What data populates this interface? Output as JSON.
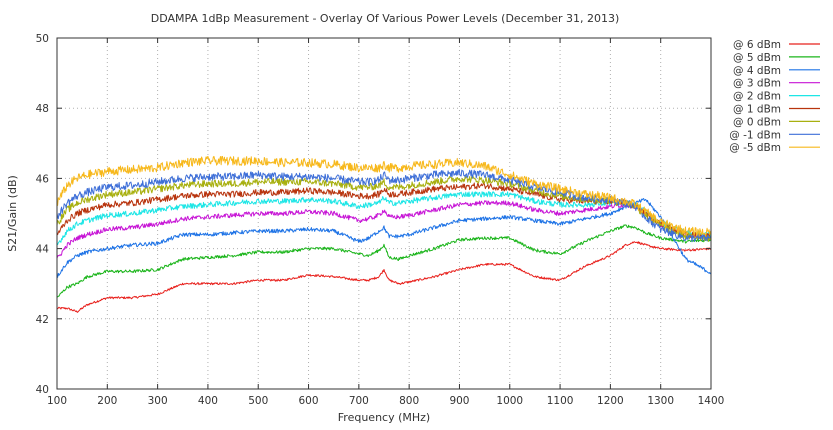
{
  "chart_data": {
    "type": "line",
    "title": "DDAMPA 1dBp Measurement - Overlay Of Various Power Levels  (December 31, 2013)",
    "xlabel": "Frequency (MHz)",
    "ylabel": "S21/Gain (dB)",
    "xlim": [
      100,
      1400
    ],
    "ylim": [
      40,
      50
    ],
    "xticks": [
      "100",
      "200",
      "300",
      "400",
      "500",
      "600",
      "700",
      "800",
      "900",
      "1000",
      "1100",
      "1200",
      "1300",
      "1400"
    ],
    "yticks": [
      "40",
      "42",
      "44",
      "46",
      "48",
      "50"
    ],
    "grid": true,
    "legend_position": "outside-right-top",
    "x": [
      100,
      120,
      140,
      160,
      200,
      250,
      300,
      350,
      400,
      450,
      500,
      550,
      600,
      650,
      700,
      720,
      740,
      750,
      760,
      780,
      800,
      850,
      900,
      950,
      1000,
      1050,
      1100,
      1150,
      1200,
      1230,
      1250,
      1270,
      1300,
      1350,
      1400
    ],
    "series": [
      {
        "name": "@ 6 dBm",
        "color": "#e8201c",
        "values": [
          42.3,
          42.3,
          42.2,
          42.4,
          42.6,
          42.6,
          42.7,
          43.0,
          43.0,
          43.0,
          43.1,
          43.1,
          43.25,
          43.2,
          43.1,
          43.1,
          43.2,
          43.4,
          43.1,
          43.0,
          43.05,
          43.2,
          43.4,
          43.55,
          43.55,
          43.2,
          43.1,
          43.5,
          43.8,
          44.1,
          44.2,
          44.1,
          44.0,
          43.95,
          44.0
        ]
      },
      {
        "name": "@ 5 dBm",
        "color": "#1bb51b",
        "values": [
          42.6,
          42.9,
          43.0,
          43.2,
          43.35,
          43.35,
          43.4,
          43.7,
          43.75,
          43.8,
          43.9,
          43.9,
          44.0,
          44.0,
          43.85,
          43.8,
          43.95,
          44.1,
          43.75,
          43.7,
          43.8,
          44.0,
          44.25,
          44.3,
          44.3,
          43.95,
          43.85,
          44.2,
          44.5,
          44.65,
          44.6,
          44.45,
          44.3,
          44.2,
          44.25
        ]
      },
      {
        "name": "@ 4 dBm",
        "color": "#1e73e6",
        "values": [
          43.2,
          43.6,
          43.8,
          43.9,
          44.0,
          44.1,
          44.15,
          44.4,
          44.4,
          44.45,
          44.5,
          44.5,
          44.55,
          44.5,
          44.2,
          44.3,
          44.5,
          44.6,
          44.35,
          44.35,
          44.4,
          44.6,
          44.8,
          44.85,
          44.9,
          44.8,
          44.7,
          44.85,
          45.0,
          45.2,
          45.3,
          45.4,
          44.9,
          43.7,
          43.3
        ]
      },
      {
        "name": "@ 3 dBm",
        "color": "#c715d6",
        "values": [
          43.7,
          44.1,
          44.3,
          44.4,
          44.55,
          44.6,
          44.7,
          44.85,
          44.9,
          44.95,
          45.0,
          45.0,
          45.05,
          45.0,
          44.8,
          44.85,
          44.95,
          45.1,
          44.9,
          44.9,
          44.95,
          45.1,
          45.25,
          45.3,
          45.3,
          45.1,
          45.0,
          45.1,
          45.2,
          45.25,
          45.2,
          45.0,
          44.7,
          44.4,
          44.35
        ]
      },
      {
        "name": "@ 2 dBm",
        "color": "#1de6e6",
        "values": [
          44.1,
          44.5,
          44.7,
          44.8,
          44.95,
          45.0,
          45.1,
          45.2,
          45.25,
          45.3,
          45.35,
          45.35,
          45.4,
          45.35,
          45.2,
          45.25,
          45.3,
          45.45,
          45.3,
          45.3,
          45.35,
          45.45,
          45.55,
          45.55,
          45.55,
          45.35,
          45.25,
          45.25,
          45.3,
          45.3,
          45.25,
          45.05,
          44.75,
          44.45,
          44.4
        ]
      },
      {
        "name": "@ 1 dBm",
        "color": "#b8340e",
        "values": [
          44.4,
          44.8,
          45.0,
          45.1,
          45.25,
          45.3,
          45.4,
          45.5,
          45.55,
          45.55,
          45.6,
          45.6,
          45.65,
          45.6,
          45.5,
          45.5,
          45.55,
          45.7,
          45.55,
          45.55,
          45.6,
          45.7,
          45.75,
          45.8,
          45.7,
          45.55,
          45.4,
          45.35,
          45.35,
          45.3,
          45.2,
          45.0,
          44.7,
          44.4,
          44.35
        ]
      },
      {
        "name": "@ 0 dBm",
        "color": "#a8b010",
        "values": [
          44.7,
          45.1,
          45.3,
          45.4,
          45.55,
          45.6,
          45.7,
          45.8,
          45.85,
          45.85,
          45.9,
          45.9,
          45.9,
          45.85,
          45.75,
          45.75,
          45.8,
          45.9,
          45.75,
          45.75,
          45.8,
          45.9,
          46.0,
          45.95,
          45.85,
          45.65,
          45.5,
          45.4,
          45.35,
          45.3,
          45.2,
          44.95,
          44.65,
          44.35,
          44.3
        ]
      },
      {
        "name": "@ -1 dBm",
        "color": "#3e6fd8",
        "values": [
          44.9,
          45.3,
          45.5,
          45.6,
          45.75,
          45.8,
          45.9,
          46.0,
          46.05,
          46.05,
          46.1,
          46.05,
          46.05,
          46.0,
          45.9,
          45.9,
          45.95,
          46.1,
          45.95,
          45.95,
          46.0,
          46.1,
          46.15,
          46.1,
          45.95,
          45.75,
          45.6,
          45.45,
          45.4,
          45.3,
          45.2,
          44.9,
          44.55,
          44.3,
          44.3
        ]
      },
      {
        "name": "@ -5 dBm",
        "color": "#f7b81b",
        "values": [
          45.3,
          45.8,
          46.0,
          46.1,
          46.2,
          46.25,
          46.3,
          46.45,
          46.5,
          46.5,
          46.5,
          46.45,
          46.45,
          46.4,
          46.3,
          46.3,
          46.3,
          46.4,
          46.3,
          46.3,
          46.35,
          46.4,
          46.45,
          46.35,
          46.1,
          45.85,
          45.7,
          45.55,
          45.45,
          45.35,
          45.25,
          45.05,
          44.75,
          44.5,
          44.45
        ]
      }
    ]
  }
}
